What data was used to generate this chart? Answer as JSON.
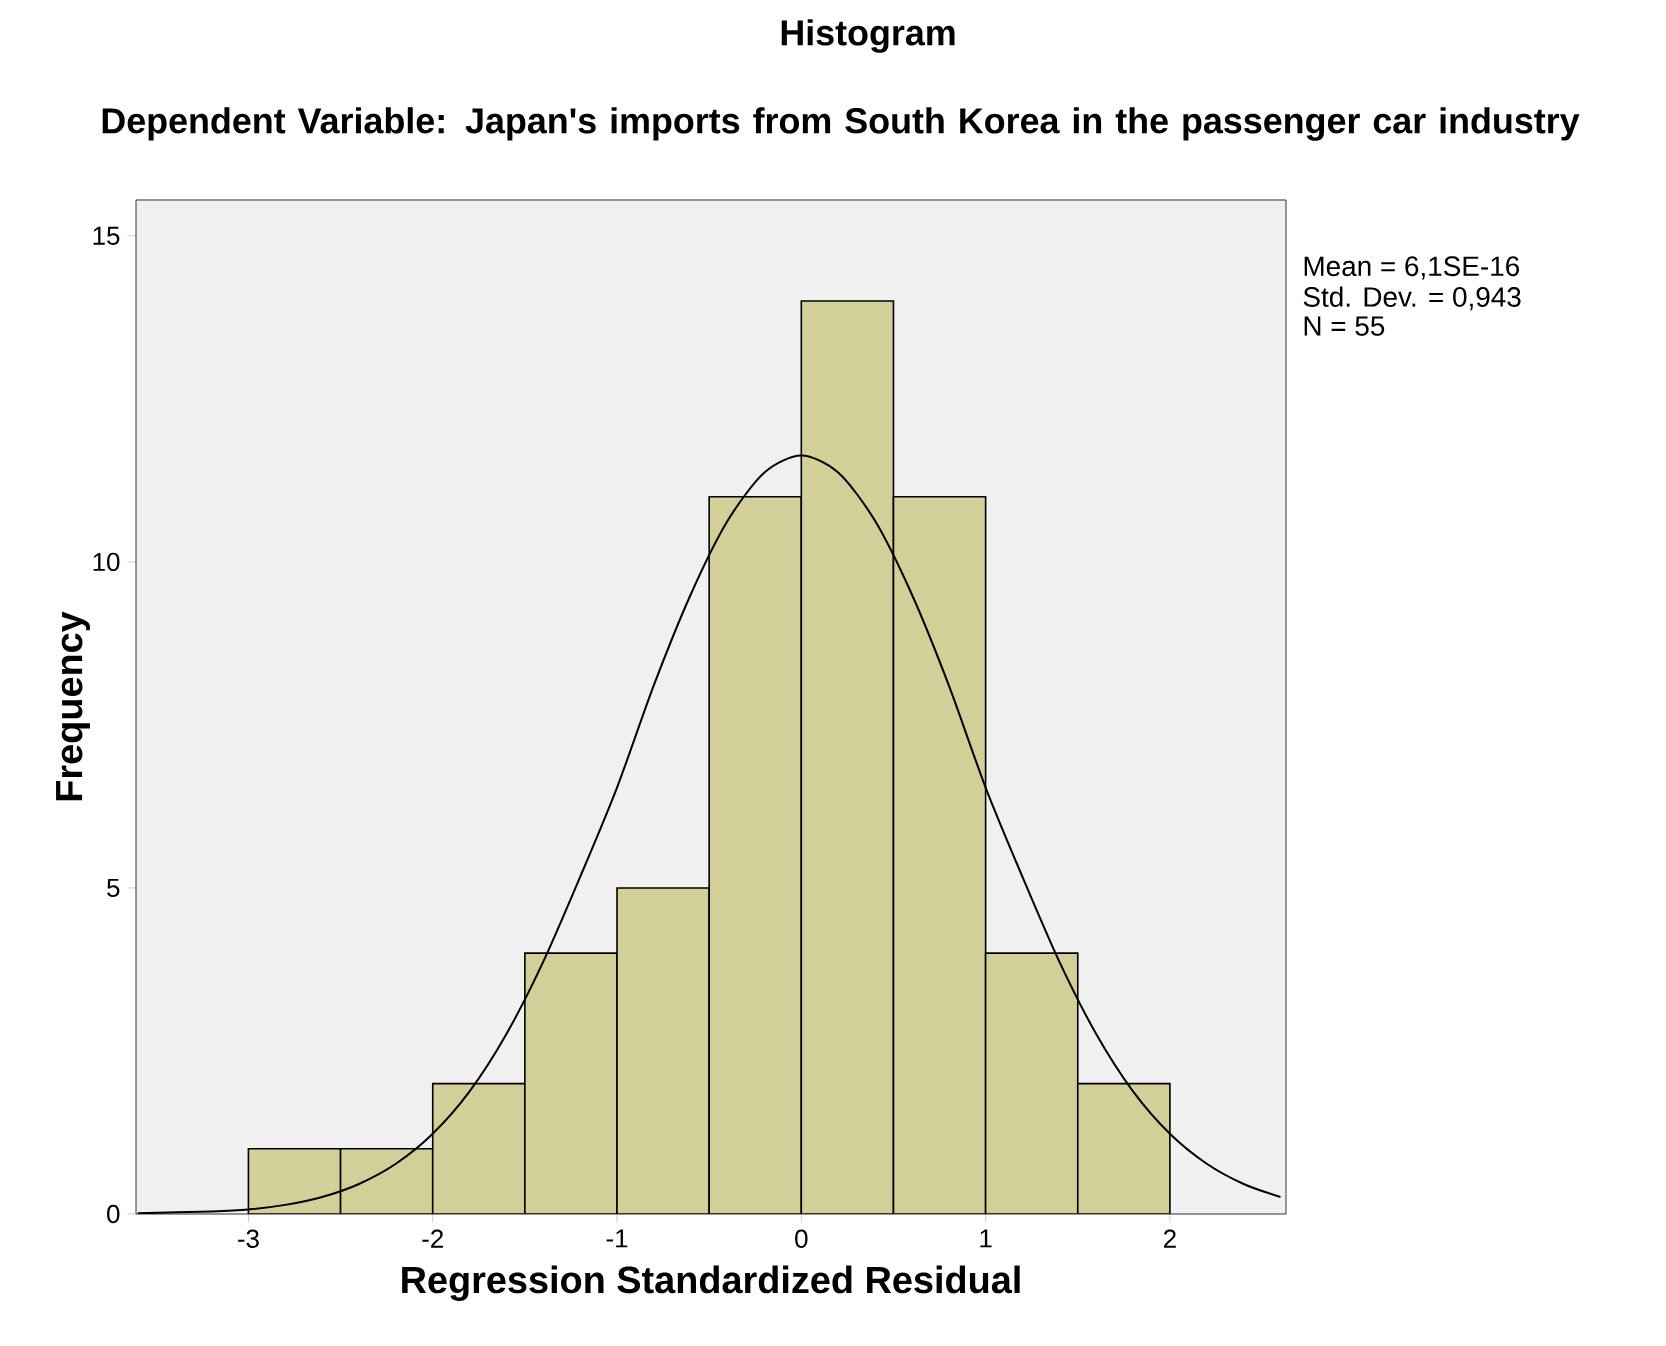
{
  "chart_data": {
    "type": "histogram",
    "title": "Histogram",
    "subtitle": "Dependent Variable: Japan's imports from South Korea in the passenger car industry",
    "xlabel": "Regression Standardized Residual",
    "ylabel": "Frequency",
    "bins": [
      -3,
      -2.5,
      -2,
      -1.5,
      -1,
      -0.5,
      0,
      0.5,
      1,
      1.5,
      2
    ],
    "values": [
      1,
      1,
      2,
      4,
      5,
      11,
      14,
      11,
      4,
      2
    ],
    "color": "#d3cf98",
    "series": [
      {
        "type": "line",
        "color": "#000000",
        "x": [
          -3.6,
          -3.2,
          -3.0,
          -2.8,
          -2.6,
          -2.4,
          -2.2,
          -2.0,
          -1.8,
          -1.6,
          -1.4,
          -1.2,
          -1.0,
          -0.8,
          -0.6,
          -0.4,
          -0.2,
          0,
          0.2,
          0.4,
          0.6,
          0.8,
          1.0,
          1.2,
          1.4,
          1.6,
          1.8,
          2.0,
          2.2,
          2.4,
          2.6
        ],
        "values": [
          0.01,
          0.04,
          0.07,
          0.14,
          0.26,
          0.46,
          0.77,
          1.23,
          1.88,
          2.76,
          3.87,
          5.17,
          6.54,
          8.11,
          9.5,
          10.63,
          11.37,
          11.63,
          11.37,
          10.63,
          9.5,
          8.11,
          6.54,
          5.17,
          3.87,
          2.76,
          1.88,
          1.23,
          0.77,
          0.46,
          0.26
        ]
      }
    ],
    "xlim": [
      -3.61,
      2.63
    ],
    "ylim": [
      0,
      15.55
    ],
    "xticks": [
      -3,
      -2,
      -1,
      0,
      1,
      2
    ],
    "yticks": [
      0,
      5,
      10,
      15
    ],
    "grid": false,
    "annotations": [
      "Mean = 6,1SE-16",
      "Std. Dev. = 0,943",
      "N = 55"
    ]
  }
}
